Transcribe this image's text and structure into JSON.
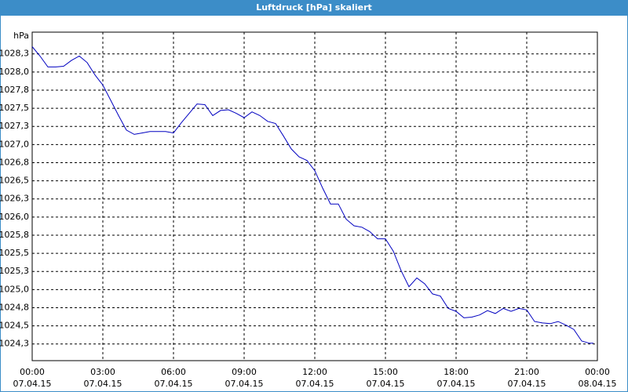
{
  "chart_data": {
    "type": "line",
    "title": "Luftdruck [hPa] skaliert",
    "ylabel": "hPa",
    "x": [
      "2015-04-07T00:00",
      "2015-04-07T00:20",
      "2015-04-07T00:40",
      "2015-04-07T01:00",
      "2015-04-07T01:20",
      "2015-04-07T01:40",
      "2015-04-07T02:00",
      "2015-04-07T02:20",
      "2015-04-07T02:40",
      "2015-04-07T03:00",
      "2015-04-07T03:20",
      "2015-04-07T03:40",
      "2015-04-07T04:00",
      "2015-04-07T04:20",
      "2015-04-07T04:40",
      "2015-04-07T05:00",
      "2015-04-07T05:20",
      "2015-04-07T05:40",
      "2015-04-07T06:00",
      "2015-04-07T06:20",
      "2015-04-07T06:40",
      "2015-04-07T07:00",
      "2015-04-07T07:20",
      "2015-04-07T07:40",
      "2015-04-07T08:00",
      "2015-04-07T08:20",
      "2015-04-07T08:40",
      "2015-04-07T09:00",
      "2015-04-07T09:20",
      "2015-04-07T09:40",
      "2015-04-07T10:00",
      "2015-04-07T10:20",
      "2015-04-07T10:40",
      "2015-04-07T11:00",
      "2015-04-07T11:20",
      "2015-04-07T11:40",
      "2015-04-07T12:00",
      "2015-04-07T12:20",
      "2015-04-07T12:40",
      "2015-04-07T13:00",
      "2015-04-07T13:20",
      "2015-04-07T13:40",
      "2015-04-07T14:00",
      "2015-04-07T14:20",
      "2015-04-07T14:40",
      "2015-04-07T15:00",
      "2015-04-07T15:20",
      "2015-04-07T15:40",
      "2015-04-07T16:00",
      "2015-04-07T16:20",
      "2015-04-07T16:40",
      "2015-04-07T17:00",
      "2015-04-07T17:20",
      "2015-04-07T17:40",
      "2015-04-07T18:00",
      "2015-04-07T18:20",
      "2015-04-07T18:40",
      "2015-04-07T19:00",
      "2015-04-07T19:20",
      "2015-04-07T19:40",
      "2015-04-07T20:00",
      "2015-04-07T20:20",
      "2015-04-07T20:40",
      "2015-04-07T21:00",
      "2015-04-07T21:20",
      "2015-04-07T21:40",
      "2015-04-07T22:00",
      "2015-04-07T22:20",
      "2015-04-07T22:40",
      "2015-04-07T23:00",
      "2015-04-07T23:20",
      "2015-04-07T23:40",
      "2015-04-07T23:50"
    ],
    "series": [
      {
        "name": "Luftdruck",
        "color": "#0000c0",
        "values": [
          1028.35,
          1028.22,
          1028.07,
          1028.07,
          1028.08,
          1028.16,
          1028.22,
          1028.13,
          1027.96,
          1027.82,
          1027.61,
          1027.4,
          1027.2,
          1027.14,
          1027.16,
          1027.18,
          1027.18,
          1027.18,
          1027.16,
          1027.3,
          1027.43,
          1027.56,
          1027.55,
          1027.4,
          1027.47,
          1027.48,
          1027.43,
          1027.37,
          1027.45,
          1027.4,
          1027.32,
          1027.29,
          1027.12,
          1026.94,
          1026.83,
          1026.78,
          1026.64,
          1026.4,
          1026.18,
          1026.18,
          1025.97,
          1025.88,
          1025.86,
          1025.8,
          1025.7,
          1025.7,
          1025.53,
          1025.26,
          1025.04,
          1025.16,
          1025.08,
          1024.94,
          1024.91,
          1024.74,
          1024.7,
          1024.61,
          1024.62,
          1024.65,
          1024.71,
          1024.67,
          1024.74,
          1024.7,
          1024.74,
          1024.72,
          1024.56,
          1024.54,
          1024.53,
          1024.56,
          1024.51,
          1024.45,
          1024.29,
          1024.26,
          1024.26
        ]
      }
    ],
    "xlim": [
      "2015-04-07T00:00",
      "2015-04-08T00:00"
    ],
    "xticks": [
      {
        "value": "2015-04-07T00:00",
        "label": [
          "00:00",
          "07.04.15"
        ]
      },
      {
        "value": "2015-04-07T03:00",
        "label": [
          "03:00",
          "07.04.15"
        ]
      },
      {
        "value": "2015-04-07T06:00",
        "label": [
          "06:00",
          "07.04.15"
        ]
      },
      {
        "value": "2015-04-07T09:00",
        "label": [
          "09:00",
          "07.04.15"
        ]
      },
      {
        "value": "2015-04-07T12:00",
        "label": [
          "12:00",
          "07.04.15"
        ]
      },
      {
        "value": "2015-04-07T15:00",
        "label": [
          "15:00",
          "07.04.15"
        ]
      },
      {
        "value": "2015-04-07T18:00",
        "label": [
          "18:00",
          "07.04.15"
        ]
      },
      {
        "value": "2015-04-07T21:00",
        "label": [
          "21:00",
          "07.04.15"
        ]
      },
      {
        "value": "2015-04-08T00:00",
        "label": [
          "00:00",
          "08.04.15"
        ]
      }
    ],
    "ylim": [
      1024.02,
      1028.55
    ],
    "yticks": [
      {
        "value": 1028.25,
        "label": "1028,3"
      },
      {
        "value": 1028.0,
        "label": "1028,0"
      },
      {
        "value": 1027.75,
        "label": "1027,8"
      },
      {
        "value": 1027.5,
        "label": "1027,5"
      },
      {
        "value": 1027.25,
        "label": "1027,3"
      },
      {
        "value": 1027.0,
        "label": "1027,0"
      },
      {
        "value": 1026.75,
        "label": "1026,8"
      },
      {
        "value": 1026.5,
        "label": "1026,5"
      },
      {
        "value": 1026.25,
        "label": "1026,3"
      },
      {
        "value": 1026.0,
        "label": "1026,0"
      },
      {
        "value": 1025.75,
        "label": "1025,8"
      },
      {
        "value": 1025.5,
        "label": "1025,5"
      },
      {
        "value": 1025.25,
        "label": "1025,3"
      },
      {
        "value": 1025.0,
        "label": "1025,0"
      },
      {
        "value": 1024.75,
        "label": "1024,8"
      },
      {
        "value": 1024.5,
        "label": "1024,5"
      },
      {
        "value": 1024.25,
        "label": "1024,3"
      }
    ],
    "grid": true
  }
}
